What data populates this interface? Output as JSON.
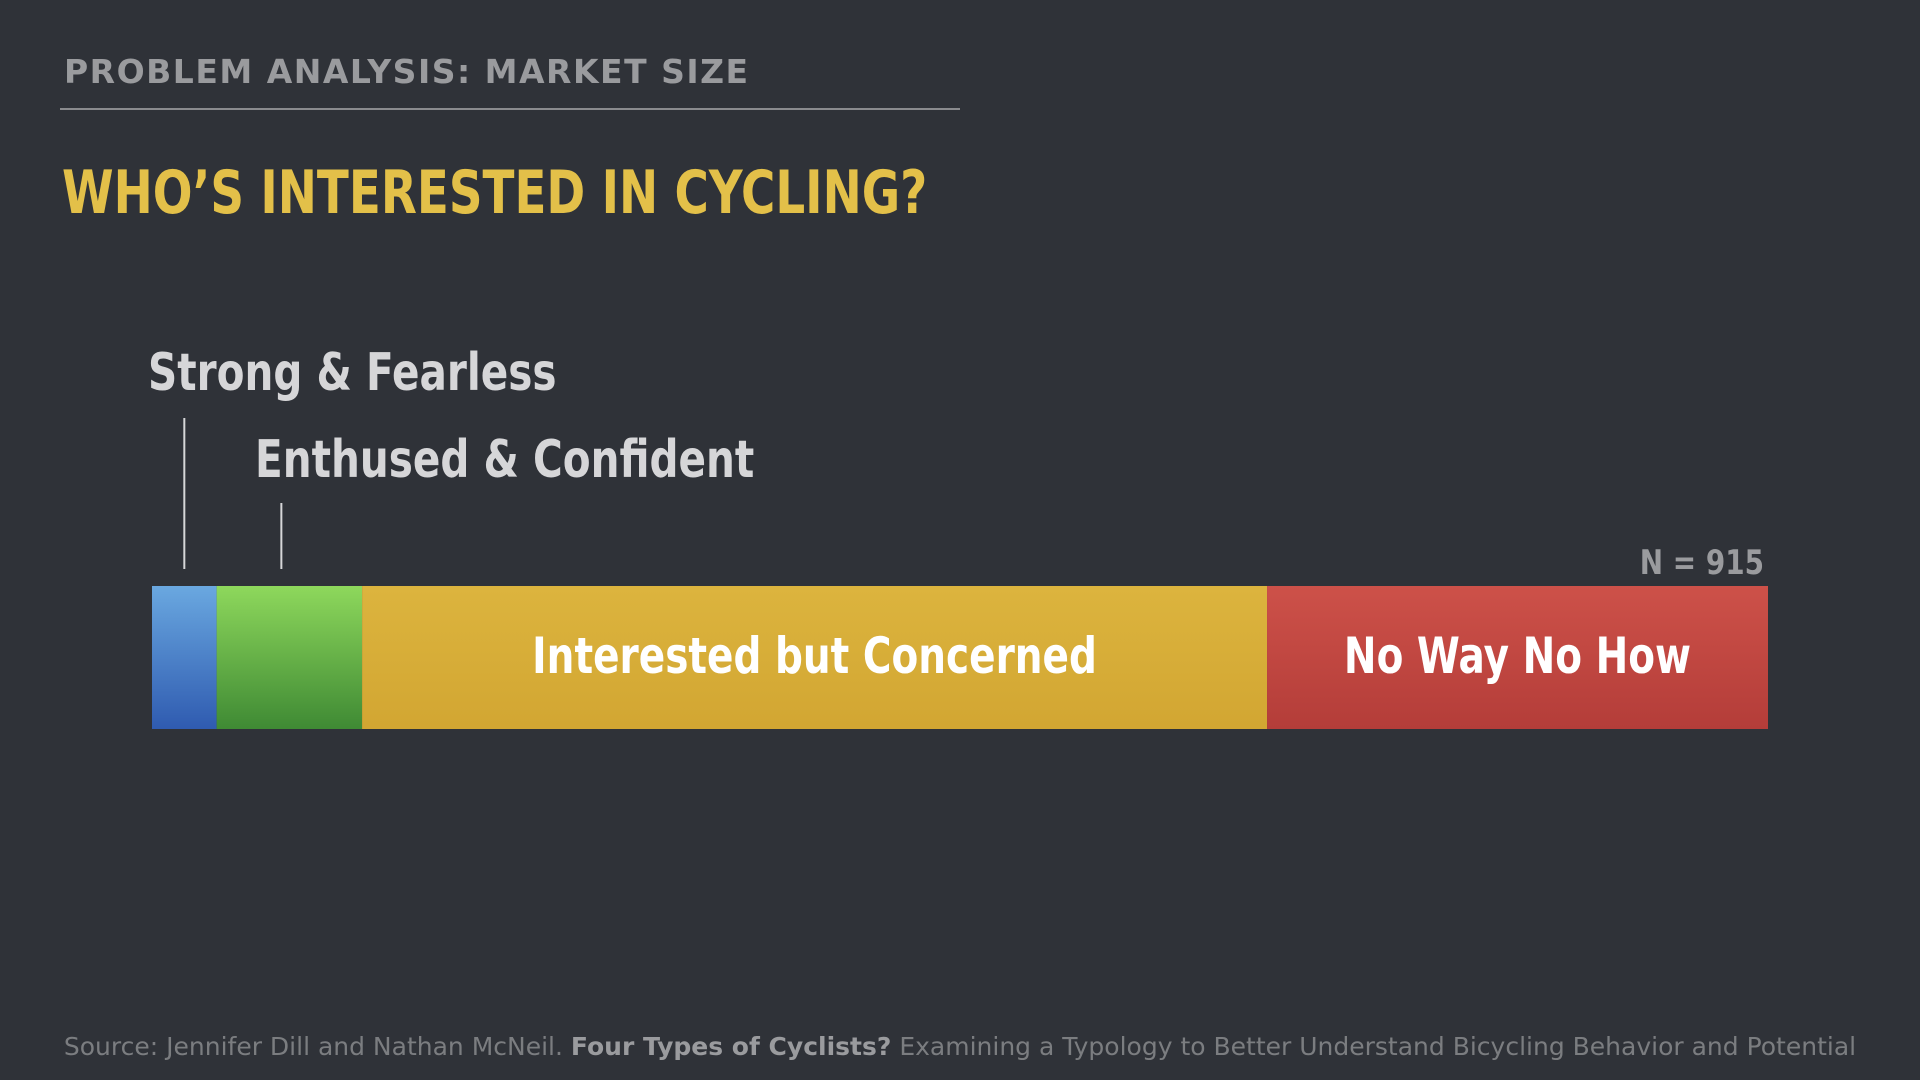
{
  "header": {
    "section_label": "PROBLEM ANALYSIS: MARKET SIZE",
    "title": "WHO’S INTERESTED IN CYCLING?"
  },
  "chart_data": {
    "type": "bar",
    "orientation": "horizontal-stacked",
    "sample_size_label": "N = 915",
    "segments": [
      {
        "name": "Strong & Fearless",
        "value": 4,
        "label_position": "callout",
        "color_top": "#6aa8e0",
        "color_bottom": "#2f5bb0"
      },
      {
        "name": "Enthused & Confident",
        "value": 9,
        "label_position": "callout",
        "color_top": "#8ed85c",
        "color_bottom": "#3f8a34"
      },
      {
        "name": "Interested but Concerned",
        "value": 56,
        "label_position": "inside",
        "color_top": "#dcb43e",
        "color_bottom": "#d2a632"
      },
      {
        "name": "No Way No How",
        "value": 31,
        "label_position": "inside",
        "color_top": "#cd5149",
        "color_bottom": "#b43d39"
      }
    ],
    "colors": {
      "label_text": "#d6d6d8",
      "inside_text": "#ffffff",
      "callout_line": "#d6d6d8",
      "n_label": "#9a9b9e"
    }
  },
  "footer": {
    "prefix": "Source: Jennifer Dill and Nathan McNeil.",
    "bold": "Four Types of Cyclists?",
    "suffix": "Examining a Typology to Better Understand Bicycling Behavior and Potential"
  }
}
